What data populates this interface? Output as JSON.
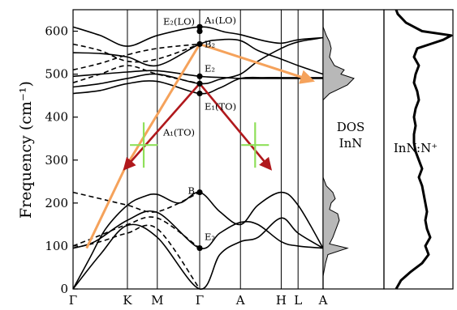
{
  "chart_data": {
    "type": "line",
    "ylabel": "Frequency (cm⁻¹)",
    "ylim": [
      0,
      650
    ],
    "yticks": [
      0,
      100,
      200,
      300,
      400,
      500,
      600
    ],
    "xticks": [
      {
        "label": "Γ",
        "k": 0
      },
      {
        "label": "K",
        "k": 1
      },
      {
        "label": "M",
        "k": 1.55
      },
      {
        "label": "Γ",
        "k": 2.33
      },
      {
        "label": "A",
        "k": 3.08
      },
      {
        "label": "H",
        "k": 3.83
      },
      {
        "label": "L",
        "k": 4.14
      },
      {
        "label": "A",
        "k": 4.6
      }
    ],
    "gamma_labels": [
      {
        "text": "E₂(LO)",
        "y": 600,
        "side": "left",
        "dy": -8
      },
      {
        "text": "A₁(LO)",
        "y": 610,
        "side": "right",
        "dy": -4
      },
      {
        "text": "B₂",
        "y": 570,
        "side": "right",
        "dy": 4
      },
      {
        "text": "E₂",
        "y": 495,
        "side": "right",
        "dy": -6
      },
      {
        "text": "A₁(TO)",
        "y": 478,
        "side": "left",
        "dy": 64
      },
      {
        "text": "E₁(TO)",
        "y": 455,
        "side": "right",
        "dy": 20
      },
      {
        "text": "B",
        "y": 225,
        "side": "left",
        "dy": 2
      },
      {
        "text": "E₂",
        "y": 95,
        "side": "right",
        "dy": -10
      }
    ],
    "gamma_points": [
      600,
      610,
      570,
      495,
      478,
      455,
      225,
      95
    ],
    "solid_bands": [
      [
        [
          0,
          610
        ],
        [
          0.5,
          590
        ],
        [
          1,
          565
        ],
        [
          1.55,
          590
        ],
        [
          2.33,
          610
        ],
        [
          2.8,
          598
        ],
        [
          3.08,
          592
        ],
        [
          3.5,
          578
        ],
        [
          3.83,
          572
        ],
        [
          4.14,
          580
        ],
        [
          4.6,
          585
        ]
      ],
      [
        [
          0,
          550
        ],
        [
          0.5,
          548
        ],
        [
          1,
          540
        ],
        [
          1.55,
          520
        ],
        [
          2.33,
          570
        ],
        [
          2.7,
          580
        ],
        [
          3.08,
          578
        ],
        [
          3.4,
          555
        ],
        [
          3.83,
          535
        ],
        [
          4.14,
          520
        ],
        [
          4.6,
          500
        ]
      ],
      [
        [
          0,
          470
        ],
        [
          0.5,
          478
        ],
        [
          1,
          490
        ],
        [
          1.55,
          500
        ],
        [
          2.33,
          478
        ],
        [
          2.7,
          488
        ],
        [
          3.08,
          500
        ],
        [
          3.4,
          530
        ],
        [
          3.83,
          560
        ],
        [
          4.14,
          575
        ],
        [
          4.6,
          585
        ]
      ],
      [
        [
          0,
          455
        ],
        [
          0.5,
          462
        ],
        [
          1,
          478
        ],
        [
          1.55,
          483
        ],
        [
          2.33,
          455
        ],
        [
          2.7,
          468
        ],
        [
          3.08,
          490
        ],
        [
          3.5,
          492
        ],
        [
          3.83,
          492
        ],
        [
          4.14,
          492
        ],
        [
          4.6,
          492
        ]
      ],
      [
        [
          0,
          495
        ],
        [
          0.5,
          500
        ],
        [
          1,
          505
        ],
        [
          1.55,
          508
        ],
        [
          2.33,
          495
        ],
        [
          2.8,
          492
        ],
        [
          3.08,
          490
        ],
        [
          3.5,
          490
        ],
        [
          4.14,
          490
        ],
        [
          4.6,
          490
        ]
      ],
      [
        [
          0,
          0
        ],
        [
          0.3,
          70
        ],
        [
          0.6,
          140
        ],
        [
          1,
          195
        ],
        [
          1.3,
          215
        ],
        [
          1.55,
          220
        ],
        [
          1.95,
          200
        ],
        [
          2.33,
          225
        ],
        [
          2.7,
          180
        ],
        [
          3.08,
          150
        ],
        [
          3.4,
          195
        ],
        [
          3.83,
          225
        ],
        [
          4.14,
          195
        ],
        [
          4.6,
          95
        ]
      ],
      [
        [
          0,
          0
        ],
        [
          0.5,
          80
        ],
        [
          1,
          148
        ],
        [
          1.55,
          120
        ],
        [
          2.33,
          0
        ],
        [
          2.7,
          80
        ],
        [
          3.08,
          110
        ],
        [
          3.4,
          120
        ],
        [
          3.83,
          165
        ],
        [
          4.14,
          130
        ],
        [
          4.6,
          95
        ]
      ],
      [
        [
          0,
          95
        ],
        [
          0.4,
          110
        ],
        [
          1,
          160
        ],
        [
          1.55,
          178
        ],
        [
          2.33,
          95
        ],
        [
          2.7,
          130
        ],
        [
          3.08,
          155
        ],
        [
          3.4,
          150
        ],
        [
          3.83,
          110
        ],
        [
          4.14,
          100
        ],
        [
          4.6,
          95
        ]
      ]
    ],
    "dashed_bands": [
      [
        [
          0,
          570
        ],
        [
          0.5,
          555
        ],
        [
          1,
          530
        ],
        [
          1.55,
          535
        ],
        [
          2.33,
          570
        ]
      ],
      [
        [
          0,
          510
        ],
        [
          0.5,
          525
        ],
        [
          1,
          545
        ],
        [
          1.55,
          560
        ],
        [
          2.33,
          570
        ]
      ],
      [
        [
          0,
          480
        ],
        [
          0.5,
          500
        ],
        [
          1,
          520
        ],
        [
          1.55,
          500
        ],
        [
          2.33,
          478
        ]
      ],
      [
        [
          0,
          225
        ],
        [
          0.5,
          210
        ],
        [
          1,
          195
        ],
        [
          1.55,
          180
        ],
        [
          2.33,
          225
        ]
      ],
      [
        [
          0,
          100
        ],
        [
          0.5,
          125
        ],
        [
          1,
          150
        ],
        [
          1.55,
          165
        ],
        [
          2.33,
          95
        ]
      ],
      [
        [
          0,
          95
        ],
        [
          0.5,
          110
        ],
        [
          1,
          130
        ],
        [
          1.55,
          140
        ],
        [
          2.33,
          0
        ]
      ]
    ],
    "orange_lines": [
      [
        [
          0.25,
          95
        ],
        [
          0.95,
          280
        ],
        [
          2.33,
          570
        ],
        [
          4.4,
          485
        ]
      ]
    ],
    "red_arrows": [
      [
        [
          2.33,
          478
        ],
        [
          0.95,
          280
        ]
      ],
      [
        [
          2.33,
          478
        ],
        [
          3.63,
          280
        ]
      ]
    ],
    "green_crosses": [
      {
        "k": 1.3,
        "y": 335
      },
      {
        "k": 3.35,
        "y": 335
      }
    ],
    "dos_inn": {
      "label_line1": "DOS",
      "label_line2": "InN",
      "profile": [
        [
          0,
          0
        ],
        [
          30,
          0
        ],
        [
          60,
          3
        ],
        [
          80,
          6
        ],
        [
          95,
          30
        ],
        [
          105,
          8
        ],
        [
          120,
          12
        ],
        [
          140,
          16
        ],
        [
          160,
          20
        ],
        [
          175,
          18
        ],
        [
          185,
          8
        ],
        [
          200,
          10
        ],
        [
          210,
          15
        ],
        [
          225,
          12
        ],
        [
          240,
          4
        ],
        [
          260,
          0
        ],
        [
          440,
          0
        ],
        [
          455,
          8
        ],
        [
          475,
          30
        ],
        [
          490,
          38
        ],
        [
          500,
          22
        ],
        [
          510,
          26
        ],
        [
          520,
          14
        ],
        [
          540,
          8
        ],
        [
          560,
          10
        ],
        [
          575,
          8
        ],
        [
          590,
          4
        ],
        [
          610,
          0
        ],
        [
          650,
          0
        ]
      ]
    },
    "inn_n_plus": {
      "label": "InN:N⁺",
      "profile": [
        [
          0,
          8
        ],
        [
          20,
          14
        ],
        [
          40,
          26
        ],
        [
          60,
          40
        ],
        [
          80,
          48
        ],
        [
          100,
          44
        ],
        [
          120,
          50
        ],
        [
          140,
          46
        ],
        [
          160,
          44
        ],
        [
          180,
          46
        ],
        [
          200,
          44
        ],
        [
          220,
          42
        ],
        [
          240,
          40
        ],
        [
          260,
          36
        ],
        [
          280,
          40
        ],
        [
          300,
          36
        ],
        [
          320,
          32
        ],
        [
          340,
          30
        ],
        [
          360,
          30
        ],
        [
          380,
          32
        ],
        [
          400,
          30
        ],
        [
          420,
          32
        ],
        [
          440,
          36
        ],
        [
          460,
          34
        ],
        [
          480,
          30
        ],
        [
          500,
          32
        ],
        [
          520,
          36
        ],
        [
          540,
          30
        ],
        [
          560,
          34
        ],
        [
          570,
          50
        ],
        [
          580,
          66
        ],
        [
          590,
          76
        ],
        [
          600,
          40
        ],
        [
          620,
          20
        ],
        [
          640,
          10
        ],
        [
          650,
          8
        ]
      ]
    }
  }
}
